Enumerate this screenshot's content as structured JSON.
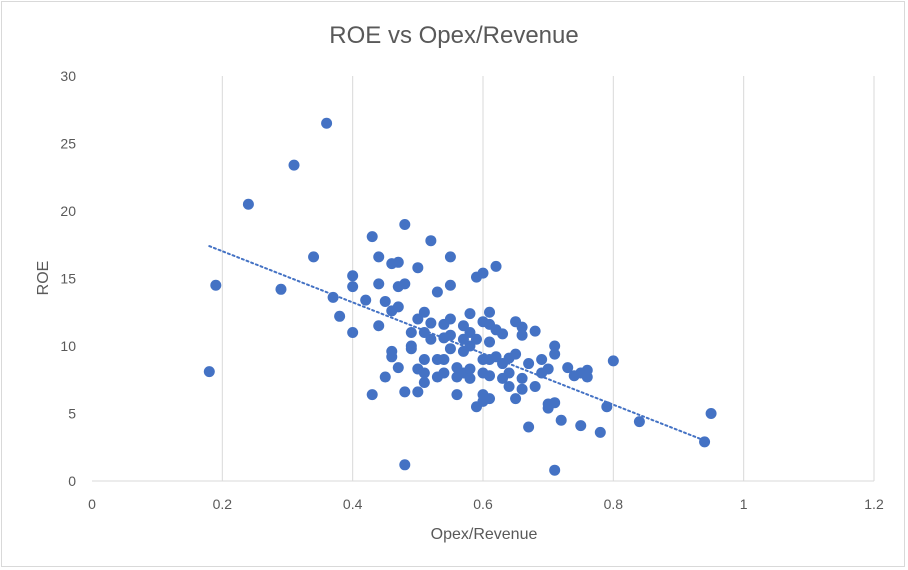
{
  "chart_data": {
    "type": "scatter",
    "title": "ROE vs Opex/Revenue",
    "xlabel": "Opex/Revenue",
    "ylabel": "ROE",
    "xlim": [
      0,
      1.2
    ],
    "ylim": [
      0,
      30
    ],
    "xticks": [
      0,
      0.2,
      0.4,
      0.6,
      0.8,
      1,
      1.2
    ],
    "xtick_labels": [
      "0",
      "0.2",
      "0.4",
      "0.6",
      "0.8",
      "1",
      "1.2"
    ],
    "yticks": [
      0,
      5,
      10,
      15,
      20,
      25,
      30
    ],
    "ytick_labels": [
      "0",
      "5",
      "10",
      "15",
      "20",
      "25",
      "30"
    ],
    "grid": "vertical",
    "legend": "none",
    "marker_color": "#4472c4",
    "trendline": {
      "type": "linear",
      "style": "dotted",
      "color": "#4472c4",
      "x": [
        0.18,
        0.94
      ],
      "y": [
        17.4,
        3.0
      ]
    },
    "points": [
      [
        0.18,
        8.1
      ],
      [
        0.19,
        14.5
      ],
      [
        0.24,
        20.5
      ],
      [
        0.29,
        14.2
      ],
      [
        0.31,
        23.4
      ],
      [
        0.34,
        16.6
      ],
      [
        0.36,
        26.5
      ],
      [
        0.37,
        13.6
      ],
      [
        0.38,
        12.2
      ],
      [
        0.4,
        15.2
      ],
      [
        0.4,
        14.4
      ],
      [
        0.4,
        11.0
      ],
      [
        0.42,
        13.4
      ],
      [
        0.43,
        18.1
      ],
      [
        0.43,
        6.4
      ],
      [
        0.44,
        16.6
      ],
      [
        0.44,
        14.6
      ],
      [
        0.44,
        11.5
      ],
      [
        0.45,
        7.7
      ],
      [
        0.45,
        13.3
      ],
      [
        0.46,
        12.6
      ],
      [
        0.46,
        9.6
      ],
      [
        0.46,
        9.2
      ],
      [
        0.46,
        16.1
      ],
      [
        0.47,
        16.2
      ],
      [
        0.47,
        14.4
      ],
      [
        0.47,
        8.4
      ],
      [
        0.47,
        12.9
      ],
      [
        0.48,
        14.6
      ],
      [
        0.48,
        1.2
      ],
      [
        0.48,
        6.6
      ],
      [
        0.48,
        19.0
      ],
      [
        0.49,
        11.0
      ],
      [
        0.49,
        10.0
      ],
      [
        0.49,
        9.8
      ],
      [
        0.5,
        15.8
      ],
      [
        0.5,
        8.3
      ],
      [
        0.5,
        6.6
      ],
      [
        0.5,
        12.0
      ],
      [
        0.51,
        12.5
      ],
      [
        0.51,
        11.0
      ],
      [
        0.51,
        8.0
      ],
      [
        0.51,
        7.3
      ],
      [
        0.51,
        9.0
      ],
      [
        0.52,
        17.8
      ],
      [
        0.52,
        11.7
      ],
      [
        0.52,
        10.5
      ],
      [
        0.53,
        7.7
      ],
      [
        0.53,
        9.0
      ],
      [
        0.53,
        14.0
      ],
      [
        0.54,
        11.6
      ],
      [
        0.54,
        10.6
      ],
      [
        0.54,
        9.0
      ],
      [
        0.54,
        8.0
      ],
      [
        0.55,
        12.0
      ],
      [
        0.55,
        16.6
      ],
      [
        0.55,
        14.5
      ],
      [
        0.55,
        10.8
      ],
      [
        0.55,
        9.8
      ],
      [
        0.56,
        8.4
      ],
      [
        0.56,
        7.7
      ],
      [
        0.56,
        6.4
      ],
      [
        0.57,
        11.5
      ],
      [
        0.57,
        10.5
      ],
      [
        0.57,
        9.6
      ],
      [
        0.57,
        8.0
      ],
      [
        0.58,
        12.4
      ],
      [
        0.58,
        11.0
      ],
      [
        0.58,
        10.0
      ],
      [
        0.58,
        8.3
      ],
      [
        0.58,
        7.6
      ],
      [
        0.59,
        15.1
      ],
      [
        0.59,
        10.5
      ],
      [
        0.59,
        5.5
      ],
      [
        0.6,
        15.4
      ],
      [
        0.6,
        11.8
      ],
      [
        0.6,
        9.0
      ],
      [
        0.6,
        8.0
      ],
      [
        0.6,
        6.4
      ],
      [
        0.6,
        5.9
      ],
      [
        0.61,
        12.5
      ],
      [
        0.61,
        11.6
      ],
      [
        0.61,
        10.3
      ],
      [
        0.61,
        9.0
      ],
      [
        0.61,
        7.8
      ],
      [
        0.61,
        6.1
      ],
      [
        0.62,
        15.9
      ],
      [
        0.62,
        11.2
      ],
      [
        0.62,
        9.2
      ],
      [
        0.63,
        10.9
      ],
      [
        0.63,
        8.7
      ],
      [
        0.63,
        7.6
      ],
      [
        0.64,
        9.1
      ],
      [
        0.64,
        8.0
      ],
      [
        0.64,
        7.0
      ],
      [
        0.65,
        11.8
      ],
      [
        0.65,
        9.4
      ],
      [
        0.65,
        6.1
      ],
      [
        0.66,
        11.4
      ],
      [
        0.66,
        10.8
      ],
      [
        0.66,
        7.6
      ],
      [
        0.66,
        6.8
      ],
      [
        0.67,
        8.7
      ],
      [
        0.67,
        4.0
      ],
      [
        0.68,
        11.1
      ],
      [
        0.68,
        7.0
      ],
      [
        0.69,
        8.0
      ],
      [
        0.69,
        9.0
      ],
      [
        0.7,
        5.4
      ],
      [
        0.7,
        5.7
      ],
      [
        0.7,
        8.3
      ],
      [
        0.71,
        10.0
      ],
      [
        0.71,
        9.4
      ],
      [
        0.71,
        5.8
      ],
      [
        0.71,
        0.8
      ],
      [
        0.72,
        4.5
      ],
      [
        0.73,
        8.4
      ],
      [
        0.74,
        7.8
      ],
      [
        0.75,
        8.0
      ],
      [
        0.75,
        4.1
      ],
      [
        0.76,
        8.2
      ],
      [
        0.76,
        7.7
      ],
      [
        0.78,
        3.6
      ],
      [
        0.79,
        5.5
      ],
      [
        0.8,
        8.9
      ],
      [
        0.84,
        4.4
      ],
      [
        0.94,
        2.9
      ],
      [
        0.95,
        5.0
      ]
    ]
  }
}
